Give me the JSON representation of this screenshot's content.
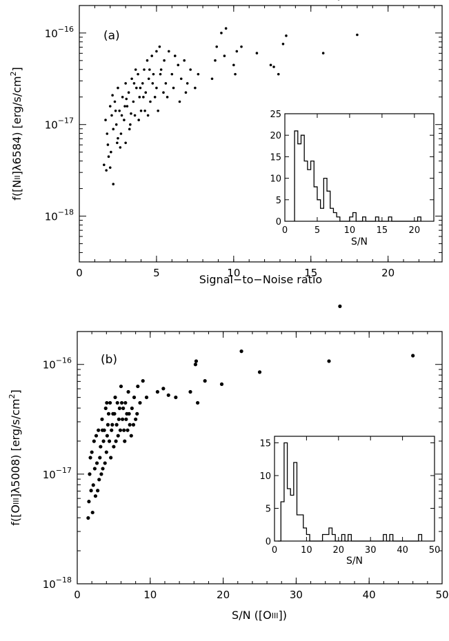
{
  "chart_data": [
    {
      "type": "scatter",
      "panel_label": "(a)",
      "xlabel": "Signal−to−Noise ratio",
      "ylabel_main": "f([N",
      "ylabel_ion": "II",
      "ylabel_line": "]λ6584)  [erg/s/cm",
      "ylabel_exp": "2",
      "ylabel_end": "]",
      "xlim": [
        0,
        23.5
      ],
      "ylim_log": [
        -18.5,
        -15.7
      ],
      "y_scale": "log",
      "x_ticks": [
        0,
        5,
        10,
        15,
        20
      ],
      "x_tick_labels": [
        "0",
        "5",
        "10",
        "15",
        "20"
      ],
      "y_ticks_log": [
        -18,
        -17,
        -16
      ],
      "y_tick_labels": [
        {
          "base": "10",
          "exp": "−18"
        },
        {
          "base": "10",
          "exp": "−17"
        },
        {
          "base": "10",
          "exp": "−16"
        }
      ],
      "marker_radius": 1.8,
      "points": [
        [
          1.6,
          -17.44
        ],
        [
          1.7,
          -16.95
        ],
        [
          1.8,
          -17.1
        ],
        [
          1.85,
          -17.22
        ],
        [
          1.9,
          -17.35
        ],
        [
          2.0,
          -17.47
        ],
        [
          2.0,
          -16.8
        ],
        [
          2.1,
          -16.9
        ],
        [
          2.2,
          -17.05
        ],
        [
          2.2,
          -17.65
        ],
        [
          2.3,
          -16.75
        ],
        [
          2.4,
          -17.0
        ],
        [
          2.5,
          -17.15
        ],
        [
          2.5,
          -16.6
        ],
        [
          2.6,
          -16.85
        ],
        [
          2.7,
          -17.1
        ],
        [
          2.8,
          -16.7
        ],
        [
          2.9,
          -16.95
        ],
        [
          3.0,
          -16.55
        ],
        [
          3.0,
          -17.2
        ],
        [
          3.1,
          -16.8
        ],
        [
          3.2,
          -16.65
        ],
        [
          3.3,
          -17.0
        ],
        [
          3.4,
          -16.5
        ],
        [
          3.5,
          -16.75
        ],
        [
          3.6,
          -16.9
        ],
        [
          3.7,
          -16.6
        ],
        [
          3.8,
          -16.45
        ],
        [
          3.9,
          -16.7
        ],
        [
          4.0,
          -16.85
        ],
        [
          4.1,
          -16.55
        ],
        [
          4.2,
          -16.4
        ],
        [
          4.3,
          -16.65
        ],
        [
          4.4,
          -16.3
        ],
        [
          4.5,
          -16.5
        ],
        [
          4.6,
          -16.75
        ],
        [
          4.7,
          -16.25
        ],
        [
          4.8,
          -16.45
        ],
        [
          5.0,
          -16.2
        ],
        [
          5.0,
          -16.6
        ],
        [
          5.2,
          -16.15
        ],
        [
          5.3,
          -16.4
        ],
        [
          5.5,
          -16.3
        ],
        [
          5.6,
          -16.55
        ],
        [
          5.8,
          -16.2
        ],
        [
          6.0,
          -16.45
        ],
        [
          6.2,
          -16.25
        ],
        [
          6.4,
          -16.35
        ],
        [
          6.6,
          -16.5
        ],
        [
          6.8,
          -16.3
        ],
        [
          7.0,
          -16.55
        ],
        [
          7.2,
          -16.4
        ],
        [
          7.5,
          -16.6
        ],
        [
          7.7,
          -16.45
        ],
        [
          1.75,
          -17.5
        ],
        [
          2.05,
          -17.3
        ],
        [
          2.35,
          -16.85
        ],
        [
          2.65,
          -17.25
        ],
        [
          2.95,
          -16.8
        ],
        [
          3.25,
          -17.05
        ],
        [
          3.55,
          -16.55
        ],
        [
          3.85,
          -16.95
        ],
        [
          4.15,
          -16.7
        ],
        [
          4.45,
          -16.9
        ],
        [
          4.75,
          -16.55
        ],
        [
          5.1,
          -16.85
        ],
        [
          5.45,
          -16.65
        ],
        [
          2.15,
          -16.68
        ],
        [
          2.45,
          -17.2
        ],
        [
          2.75,
          -16.9
        ],
        [
          3.05,
          -16.72
        ],
        [
          3.35,
          -16.88
        ],
        [
          3.65,
          -16.4
        ],
        [
          3.95,
          -16.6
        ],
        [
          4.25,
          -16.85
        ],
        [
          4.55,
          -16.4
        ],
        [
          4.9,
          -16.7
        ],
        [
          5.25,
          -16.45
        ],
        [
          5.7,
          -16.7
        ],
        [
          6.1,
          -16.6
        ],
        [
          6.5,
          -16.75
        ],
        [
          6.9,
          -16.65
        ],
        [
          8.6,
          -16.5
        ],
        [
          8.8,
          -16.3
        ],
        [
          8.9,
          -16.15
        ],
        [
          9.2,
          -16.0
        ],
        [
          9.4,
          -16.25
        ],
        [
          9.5,
          -15.95
        ],
        [
          10.0,
          -16.35
        ],
        [
          10.1,
          -16.45
        ],
        [
          10.2,
          -16.2
        ],
        [
          10.5,
          -16.15
        ],
        [
          11.5,
          -16.22
        ],
        [
          12.4,
          -16.35
        ],
        [
          12.6,
          -16.37
        ],
        [
          12.9,
          -16.45
        ],
        [
          13.2,
          -16.12
        ],
        [
          13.4,
          -16.03
        ],
        [
          15.8,
          -16.22
        ],
        [
          16.8,
          -15.63
        ],
        [
          18.0,
          -16.02
        ]
      ]
    },
    {
      "type": "bar",
      "role": "inset-histogram",
      "xlabel": "S/N",
      "xlim": [
        0,
        23
      ],
      "ylim": [
        0,
        25
      ],
      "x_ticks": [
        0,
        5,
        10,
        15,
        20
      ],
      "x_tick_labels": [
        "0",
        "5",
        "10",
        "15",
        "20"
      ],
      "y_ticks": [
        0,
        5,
        10,
        15,
        20,
        25
      ],
      "y_tick_labels": [
        "0",
        "5",
        "10",
        "15",
        "20",
        "25"
      ],
      "bin_start": 1.5,
      "bin_width": 0.5,
      "values": [
        21,
        18,
        20,
        14,
        12,
        14,
        8,
        5,
        3,
        10,
        7,
        3,
        2,
        1,
        0,
        0,
        0,
        1,
        2,
        0,
        0,
        1,
        0,
        0,
        0,
        1,
        0,
        0,
        0,
        1,
        0,
        0,
        0,
        0,
        0,
        0,
        0,
        0,
        1
      ]
    },
    {
      "type": "scatter",
      "panel_label": "(b)",
      "xlabel_main": "S/N  ([O",
      "xlabel_ion": "III",
      "xlabel_end": "])",
      "ylabel_main": "f([O",
      "ylabel_ion": "III",
      "ylabel_line": "]λ5008)  [erg/s/cm",
      "ylabel_exp": "2",
      "ylabel_end": "]",
      "xlim": [
        0,
        50
      ],
      "ylim_log": [
        -18,
        -15.7
      ],
      "y_scale": "log",
      "x_ticks": [
        0,
        10,
        20,
        30,
        40,
        50
      ],
      "x_tick_labels": [
        "0",
        "10",
        "20",
        "30",
        "40",
        "50"
      ],
      "y_ticks_log": [
        -18,
        -17,
        -16
      ],
      "y_tick_labels": [
        {
          "base": "10",
          "exp": "−18"
        },
        {
          "base": "10",
          "exp": "−17"
        },
        {
          "base": "10",
          "exp": "−16"
        }
      ],
      "marker_radius": 2.6,
      "points": [
        [
          1.5,
          -17.4
        ],
        [
          1.7,
          -17.0
        ],
        [
          1.8,
          -16.85
        ],
        [
          2.0,
          -16.8
        ],
        [
          2.2,
          -17.1
        ],
        [
          2.3,
          -16.7
        ],
        [
          2.5,
          -17.2
        ],
        [
          2.7,
          -16.9
        ],
        [
          2.9,
          -16.6
        ],
        [
          3.0,
          -17.05
        ],
        [
          3.2,
          -16.75
        ],
        [
          3.4,
          -16.5
        ],
        [
          3.5,
          -16.95
        ],
        [
          3.7,
          -16.6
        ],
        [
          3.9,
          -16.4
        ],
        [
          4.0,
          -16.8
        ],
        [
          4.2,
          -16.55
        ],
        [
          4.4,
          -16.7
        ],
        [
          4.5,
          -16.35
        ],
        [
          4.7,
          -16.6
        ],
        [
          4.9,
          -16.45
        ],
        [
          5.0,
          -16.75
        ],
        [
          5.2,
          -16.3
        ],
        [
          5.4,
          -16.55
        ],
        [
          5.6,
          -16.65
        ],
        [
          5.8,
          -16.4
        ],
        [
          6.0,
          -16.2
        ],
        [
          6.2,
          -16.5
        ],
        [
          6.4,
          -16.6
        ],
        [
          6.6,
          -16.35
        ],
        [
          6.8,
          -16.45
        ],
        [
          7.0,
          -16.25
        ],
        [
          7.2,
          -16.55
        ],
        [
          7.5,
          -16.4
        ],
        [
          7.8,
          -16.3
        ],
        [
          8.0,
          -16.5
        ],
        [
          8.3,
          -16.2
        ],
        [
          8.6,
          -16.35
        ],
        [
          9.0,
          -16.15
        ],
        [
          9.5,
          -16.3
        ],
        [
          2.1,
          -17.35
        ],
        [
          2.4,
          -16.95
        ],
        [
          2.8,
          -17.15
        ],
        [
          3.1,
          -16.85
        ],
        [
          3.3,
          -17.0
        ],
        [
          3.6,
          -16.7
        ],
        [
          3.8,
          -16.9
        ],
        [
          4.1,
          -16.65
        ],
        [
          4.3,
          -16.45
        ],
        [
          4.6,
          -16.85
        ],
        [
          4.8,
          -16.55
        ],
        [
          5.1,
          -16.45
        ],
        [
          5.3,
          -16.7
        ],
        [
          5.5,
          -16.35
        ],
        [
          5.7,
          -16.5
        ],
        [
          5.9,
          -16.6
        ],
        [
          6.1,
          -16.35
        ],
        [
          6.3,
          -16.4
        ],
        [
          6.5,
          -16.7
        ],
        [
          6.7,
          -16.5
        ],
        [
          6.9,
          -16.6
        ],
        [
          7.1,
          -16.45
        ],
        [
          7.4,
          -16.65
        ],
        [
          7.7,
          -16.55
        ],
        [
          8.2,
          -16.45
        ],
        [
          1.6,
          -17.25
        ],
        [
          1.9,
          -17.15
        ],
        [
          2.6,
          -16.65
        ],
        [
          3.45,
          -16.6
        ],
        [
          4.05,
          -16.35
        ],
        [
          11.0,
          -16.25
        ],
        [
          11.8,
          -16.22
        ],
        [
          12.5,
          -16.28
        ],
        [
          13.5,
          -16.3
        ],
        [
          15.5,
          -16.25
        ],
        [
          16.2,
          -16.0
        ],
        [
          16.3,
          -15.97
        ],
        [
          16.5,
          -16.35
        ],
        [
          17.5,
          -16.15
        ],
        [
          19.8,
          -16.18
        ],
        [
          22.5,
          -15.88
        ],
        [
          25.0,
          -16.07
        ],
        [
          34.5,
          -15.97
        ],
        [
          36.0,
          -15.47
        ],
        [
          46.0,
          -15.92
        ]
      ]
    },
    {
      "type": "bar",
      "role": "inset-histogram",
      "xlabel": "S/N",
      "xlim": [
        0,
        50
      ],
      "ylim": [
        0,
        16
      ],
      "x_ticks": [
        0,
        10,
        20,
        30,
        40,
        50
      ],
      "x_tick_labels": [
        "0",
        "10",
        "20",
        "30",
        "40",
        "50"
      ],
      "y_ticks": [
        0,
        5,
        10,
        15
      ],
      "y_tick_labels": [
        "0",
        "5",
        "10",
        "15"
      ],
      "bin_start": 1,
      "bin_width": 1,
      "values": [
        0,
        6,
        15,
        8,
        7,
        12,
        4,
        4,
        2,
        1,
        0,
        0,
        0,
        0,
        1,
        1,
        2,
        1,
        0,
        0,
        1,
        0,
        1,
        0,
        0,
        0,
        0,
        0,
        0,
        0,
        0,
        0,
        0,
        1,
        0,
        1,
        0,
        0,
        0,
        0,
        0,
        0,
        0,
        0,
        1
      ]
    }
  ]
}
